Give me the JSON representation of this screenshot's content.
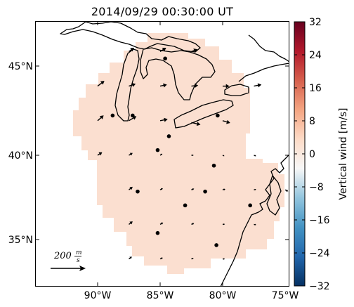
{
  "title": "2014/09/29 00:30:00 UT",
  "lat_labels": [
    "45°N",
    "40°N",
    "35°N"
  ],
  "lon_labels": [
    "90°W",
    "85°W",
    "80°W",
    "75°W"
  ],
  "colorbar": {
    "label": "Vertical wind [m/s]",
    "ticks": [
      "32",
      "24",
      "16",
      "8",
      "0",
      "−8",
      "−16",
      "−24",
      "−32"
    ],
    "min": -32,
    "max": 32,
    "colors": [
      "#053061",
      "#2166ac",
      "#4393c3",
      "#92c5de",
      "#f7f7f7",
      "#fddbc7",
      "#f4a582",
      "#d6604d",
      "#b2182b",
      "#67001f"
    ]
  },
  "scale": {
    "value": "200",
    "unit_numerator": "m",
    "unit_denominator": "s"
  },
  "chart_data": {
    "type": "map",
    "projection": "mercator",
    "lon_range": [
      -94.5,
      -74.5
    ],
    "lat_range": [
      32.5,
      47.5
    ],
    "fill_value_mps": 8,
    "fill_color": "#fbdfd0",
    "land_boundaries": "coastlines and Great Lakes shorelines",
    "wind_vectors": [
      {
        "lon": -90.0,
        "lat": 42.0,
        "u": 40,
        "v": 35
      },
      {
        "lon": -87.5,
        "lat": 42.0,
        "u": 50,
        "v": 30
      },
      {
        "lon": -85.0,
        "lat": 42.0,
        "u": 50,
        "v": 10
      },
      {
        "lon": -82.5,
        "lat": 41.9,
        "u": 60,
        "v": -15
      },
      {
        "lon": -80.0,
        "lat": 42.0,
        "u": 50,
        "v": -15
      },
      {
        "lon": -90.0,
        "lat": 44.0,
        "u": 45,
        "v": 35
      },
      {
        "lon": -87.5,
        "lat": 44.0,
        "u": 45,
        "v": 15
      },
      {
        "lon": -85.0,
        "lat": 44.0,
        "u": 45,
        "v": 10
      },
      {
        "lon": -82.5,
        "lat": 44.0,
        "u": 45,
        "v": 5
      },
      {
        "lon": -80.0,
        "lat": 44.0,
        "u": 45,
        "v": 0
      },
      {
        "lon": -77.5,
        "lat": 44.0,
        "u": 50,
        "v": 10
      },
      {
        "lon": -87.5,
        "lat": 46.0,
        "u": 35,
        "v": 25
      },
      {
        "lon": -85.0,
        "lat": 46.0,
        "u": 40,
        "v": 25
      },
      {
        "lon": -82.5,
        "lat": 46.0,
        "u": 40,
        "v": 15
      },
      {
        "lon": -90.0,
        "lat": 40.0,
        "u": 30,
        "v": 20
      },
      {
        "lon": -87.5,
        "lat": 40.0,
        "u": 25,
        "v": 15
      },
      {
        "lon": -85.0,
        "lat": 40.0,
        "u": 15,
        "v": 10
      },
      {
        "lon": -82.5,
        "lat": 40.0,
        "u": 15,
        "v": 0
      },
      {
        "lon": -80.0,
        "lat": 40.0,
        "u": 12,
        "v": -5
      },
      {
        "lon": -77.5,
        "lat": 40.0,
        "u": 15,
        "v": -5
      },
      {
        "lon": -87.5,
        "lat": 38.0,
        "u": 25,
        "v": 20
      },
      {
        "lon": -85.0,
        "lat": 38.0,
        "u": 18,
        "v": 10
      },
      {
        "lon": -82.5,
        "lat": 38.0,
        "u": 18,
        "v": 8
      },
      {
        "lon": -80.0,
        "lat": 38.0,
        "u": 18,
        "v": 5
      },
      {
        "lon": -77.5,
        "lat": 38.0,
        "u": 15,
        "v": 3
      },
      {
        "lon": -75.0,
        "lat": 38.0,
        "u": 20,
        "v": -10
      },
      {
        "lon": -87.5,
        "lat": 36.0,
        "u": 25,
        "v": 20
      },
      {
        "lon": -85.0,
        "lat": 36.0,
        "u": 20,
        "v": 12
      },
      {
        "lon": -82.5,
        "lat": 36.0,
        "u": 18,
        "v": 8
      },
      {
        "lon": -80.0,
        "lat": 36.0,
        "u": 15,
        "v": 2
      },
      {
        "lon": -77.5,
        "lat": 36.0,
        "u": 15,
        "v": -3
      },
      {
        "lon": -87.5,
        "lat": 34.0,
        "u": 20,
        "v": 15
      },
      {
        "lon": -85.0,
        "lat": 34.0,
        "u": 18,
        "v": 8
      },
      {
        "lon": -82.5,
        "lat": 34.0,
        "u": 15,
        "v": 5
      },
      {
        "lon": -80.0,
        "lat": 34.0,
        "u": 15,
        "v": 0
      }
    ],
    "stations": [
      {
        "lon": -84.6,
        "lat": 45.6
      },
      {
        "lon": -88.8,
        "lat": 42.3
      },
      {
        "lon": -87.2,
        "lat": 42.3
      },
      {
        "lon": -84.3,
        "lat": 41.1
      },
      {
        "lon": -80.4,
        "lat": 42.3
      },
      {
        "lon": -85.2,
        "lat": 40.3
      },
      {
        "lon": -80.7,
        "lat": 39.4
      },
      {
        "lon": -86.8,
        "lat": 37.9
      },
      {
        "lon": -81.4,
        "lat": 37.9
      },
      {
        "lon": -83.0,
        "lat": 37.1
      },
      {
        "lon": -77.8,
        "lat": 37.1
      },
      {
        "lon": -85.2,
        "lat": 35.5
      },
      {
        "lon": -80.5,
        "lat": 34.8
      }
    ]
  }
}
